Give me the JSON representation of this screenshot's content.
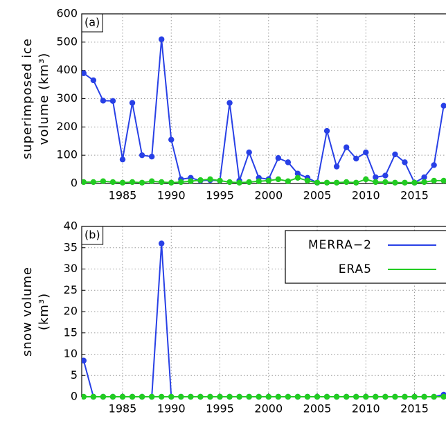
{
  "chart_data": [
    {
      "type": "line",
      "panel_label": "(a)",
      "ylabel": [
        "superimposed ice",
        "volume (km³)"
      ],
      "x": [
        1981,
        1982,
        1983,
        1984,
        1985,
        1986,
        1987,
        1988,
        1989,
        1990,
        1991,
        1992,
        1993,
        1994,
        1995,
        1996,
        1997,
        1998,
        1999,
        2000,
        2001,
        2002,
        2003,
        2004,
        2005,
        2006,
        2007,
        2008,
        2009,
        2010,
        2011,
        2012,
        2013,
        2014,
        2015,
        2016,
        2017,
        2018
      ],
      "series": [
        {
          "color": "#2840e6",
          "values": [
            390,
            365,
            293,
            292,
            85,
            285,
            100,
            95,
            510,
            155,
            15,
            20,
            10,
            12,
            10,
            285,
            10,
            110,
            20,
            15,
            90,
            75,
            35,
            20,
            3,
            186,
            60,
            128,
            88,
            110,
            22,
            28,
            103,
            75,
            3,
            22,
            65,
            275
          ]
        },
        {
          "color": "#22cc22",
          "values": [
            5,
            5,
            8,
            5,
            3,
            5,
            3,
            8,
            5,
            3,
            5,
            8,
            12,
            15,
            10,
            5,
            3,
            5,
            8,
            10,
            15,
            8,
            20,
            10,
            3,
            3,
            3,
            5,
            3,
            15,
            5,
            5,
            3,
            3,
            3,
            5,
            10,
            10
          ]
        }
      ],
      "xlim": [
        1980.8,
        2018.2
      ],
      "xticks": [
        1985,
        1990,
        1995,
        2000,
        2005,
        2010,
        2015
      ],
      "ylim": [
        0,
        600
      ],
      "yticks": [
        0,
        100,
        200,
        300,
        400,
        500,
        600
      ],
      "grid": true
    },
    {
      "type": "line",
      "panel_label": "(b)",
      "ylabel": [
        "snow volume",
        "(km³)"
      ],
      "x": [
        1981,
        1982,
        1983,
        1984,
        1985,
        1986,
        1987,
        1988,
        1989,
        1990,
        1991,
        1992,
        1993,
        1994,
        1995,
        1996,
        1997,
        1998,
        1999,
        2000,
        2001,
        2002,
        2003,
        2004,
        2005,
        2006,
        2007,
        2008,
        2009,
        2010,
        2011,
        2012,
        2013,
        2014,
        2015,
        2016,
        2017,
        2018
      ],
      "series": [
        {
          "name": "MERRA−2",
          "color": "#2840e6",
          "values": [
            8.5,
            0,
            0,
            0,
            0,
            0,
            0,
            0,
            36,
            0,
            0,
            0,
            0,
            0,
            0,
            0,
            0,
            0,
            0,
            0,
            0,
            0,
            0,
            0,
            0,
            0,
            0,
            0,
            0,
            0,
            0,
            0,
            0,
            0,
            0,
            0,
            0,
            0.5
          ]
        },
        {
          "name": "ERA5",
          "color": "#22cc22",
          "values": [
            0,
            0,
            0,
            0,
            0,
            0,
            0,
            0,
            0,
            0,
            0,
            0,
            0,
            0,
            0,
            0,
            0,
            0,
            0,
            0,
            0,
            0,
            0,
            0,
            0,
            0,
            0,
            0,
            0,
            0,
            0,
            0,
            0,
            0,
            0,
            0,
            0,
            0
          ]
        }
      ],
      "xlim": [
        1980.8,
        2018.2
      ],
      "xticks": [
        1985,
        1990,
        1995,
        2000,
        2005,
        2010,
        2015
      ],
      "ylim": [
        0,
        40
      ],
      "yticks": [
        0,
        5,
        10,
        15,
        20,
        25,
        30,
        35,
        40
      ],
      "grid": true,
      "legend": "upper right"
    }
  ]
}
